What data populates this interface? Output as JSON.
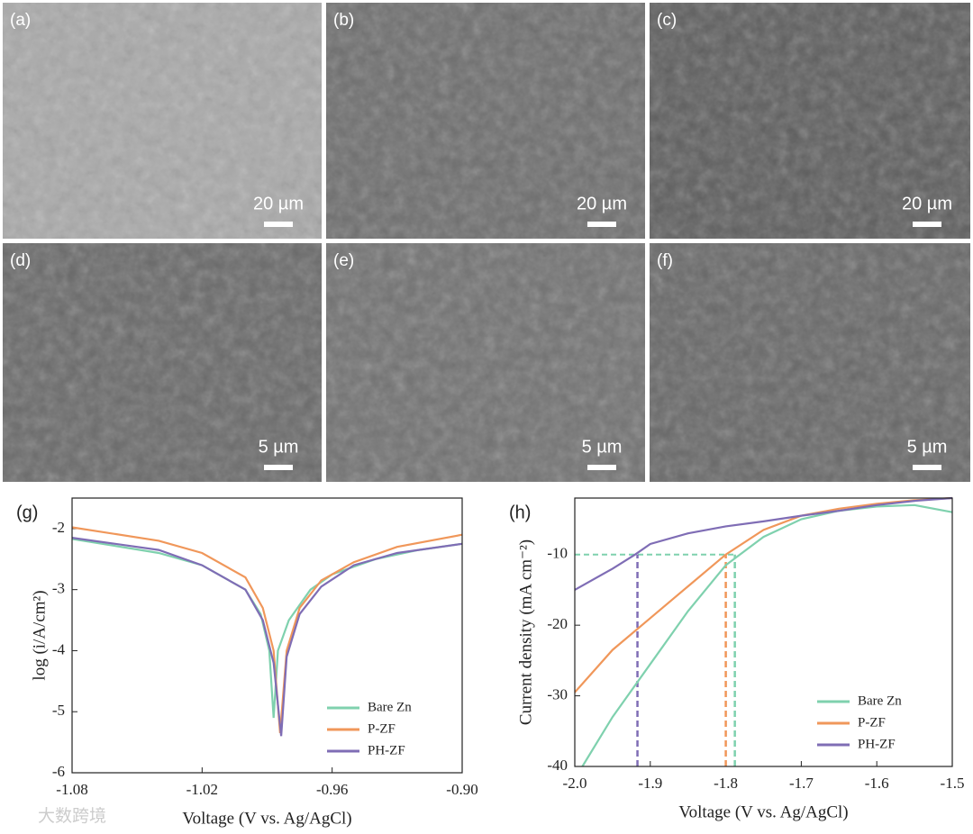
{
  "panels": [
    {
      "label": "(a)",
      "scale": "20 µm"
    },
    {
      "label": "(b)",
      "scale": "20 µm"
    },
    {
      "label": "(c)",
      "scale": "20 µm"
    },
    {
      "label": "(d)",
      "scale": "5 µm"
    },
    {
      "label": "(e)",
      "scale": "5 µm"
    },
    {
      "label": "(f)",
      "scale": "5 µm"
    }
  ],
  "watermark": "大数跨境",
  "chart_data": [
    {
      "type": "line",
      "panel_label": "(g)",
      "x_label": "Voltage (V vs. Ag/AgCl)",
      "y_label": "log (i/A/cm²)",
      "xlim": [
        -1.08,
        -0.9
      ],
      "xticks": [
        -1.08,
        -1.02,
        -0.96,
        {
          "value": -0.9,
          "label": "-0.90"
        }
      ],
      "ylim": [
        -6,
        -1.5
      ],
      "yticks": [
        -2,
        -3,
        -4,
        -5,
        -6
      ],
      "legend": "lower-right",
      "series": [
        {
          "name": "Bare Zn",
          "color": "#7fd1ae",
          "x": [
            -1.08,
            -1.04,
            -1.02,
            -1.0,
            -0.993,
            -0.989,
            -0.987,
            -0.985,
            -0.98,
            -0.97,
            -0.96,
            -0.94,
            -0.92,
            -0.9
          ],
          "values": [
            -2.17,
            -2.4,
            -2.6,
            -3.0,
            -3.4,
            -4.0,
            -5.1,
            -4.0,
            -3.5,
            -3.0,
            -2.75,
            -2.5,
            -2.35,
            -2.25
          ]
        },
        {
          "name": "P-ZF",
          "color": "#f0975a",
          "x": [
            -1.08,
            -1.04,
            -1.02,
            -1.0,
            -0.992,
            -0.987,
            -0.984,
            -0.981,
            -0.975,
            -0.965,
            -0.95,
            -0.93,
            -0.9
          ],
          "values": [
            -1.98,
            -2.2,
            -2.4,
            -2.8,
            -3.3,
            -4.0,
            -5.35,
            -4.0,
            -3.3,
            -2.85,
            -2.55,
            -2.3,
            -2.1
          ]
        },
        {
          "name": "PH-ZF",
          "color": "#7f6db5",
          "x": [
            -1.08,
            -1.04,
            -1.02,
            -1.0,
            -0.992,
            -0.987,
            -0.9835,
            -0.981,
            -0.975,
            -0.965,
            -0.95,
            -0.93,
            -0.9
          ],
          "values": [
            -2.15,
            -2.35,
            -2.6,
            -3.0,
            -3.5,
            -4.2,
            -5.4,
            -4.1,
            -3.4,
            -2.95,
            -2.6,
            -2.4,
            -2.25
          ]
        }
      ]
    },
    {
      "type": "line",
      "panel_label": "(h)",
      "x_label": "Voltage (V vs. Ag/AgCl)",
      "y_label": "Current density (mA cm⁻²)",
      "xlim": [
        -2,
        -1.5
      ],
      "xticks": [
        {
          "value": -2,
          "label": "-2.0"
        },
        -1.9,
        -1.8,
        -1.7,
        -1.6,
        -1.5
      ],
      "ylim": [
        -40,
        -2
      ],
      "yticks": [
        -10,
        -20,
        -30,
        -40
      ],
      "legend": "lower-right",
      "reference_lines": {
        "y": -10,
        "y_color": "#7fd1ae",
        "x": [
          -1.917,
          -1.8,
          -1.788
        ],
        "x_colors": [
          "#7f6db5",
          "#f0975a",
          "#7fd1ae"
        ]
      },
      "series": [
        {
          "name": "Bare Zn",
          "color": "#7fd1ae",
          "x": [
            -1.99,
            -1.95,
            -1.9,
            -1.85,
            -1.8,
            -1.75,
            -1.7,
            -1.65,
            -1.6,
            -1.55,
            -1.5
          ],
          "values": [
            -40,
            -33,
            -25.5,
            -18,
            -11.5,
            -7.5,
            -5,
            -3.8,
            -3.2,
            -3,
            -4
          ]
        },
        {
          "name": "P-ZF",
          "color": "#f0975a",
          "x": [
            -2,
            -1.95,
            -1.9,
            -1.85,
            -1.8,
            -1.75,
            -1.7,
            -1.65,
            -1.6,
            -1.55,
            -1.5
          ],
          "values": [
            -29.5,
            -23.5,
            -19,
            -14.5,
            -10,
            -6.5,
            -4.5,
            -3.5,
            -2.8,
            -2.3,
            -2
          ]
        },
        {
          "name": "PH-ZF",
          "color": "#7f6db5",
          "x": [
            -2,
            -1.95,
            -1.92,
            -1.9,
            -1.85,
            -1.8,
            -1.75,
            -1.7,
            -1.65,
            -1.6,
            -1.55,
            -1.5
          ],
          "values": [
            -15,
            -12,
            -10,
            -8.5,
            -7,
            -6,
            -5.3,
            -4.5,
            -3.8,
            -3,
            -2.4,
            -2
          ]
        }
      ]
    }
  ]
}
